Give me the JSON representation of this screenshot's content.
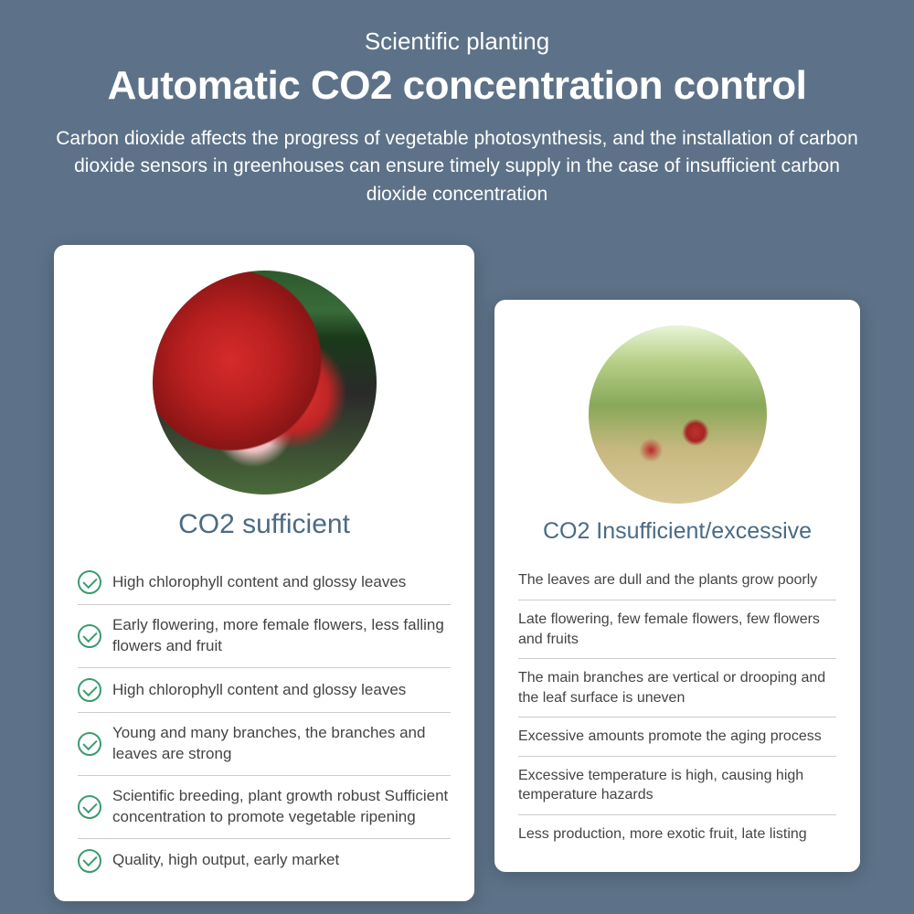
{
  "header": {
    "subtitle": "Scientific planting",
    "title": "Automatic CO2 concentration control",
    "description": "Carbon dioxide affects the progress of vegetable photosynthesis, and the installation of carbon dioxide sensors in greenhouses can ensure timely supply in the case of insufficient carbon dioxide concentration"
  },
  "colors": {
    "background": "#5d7288",
    "card_bg": "#ffffff",
    "title_color": "#4a6b85",
    "check_color": "#3b9b6f",
    "text_color": "#444444",
    "divider": "#cccccc"
  },
  "left_card": {
    "title": "CO2 sufficient",
    "image_type": "healthy-strawberries",
    "items": [
      "High chlorophyll content and glossy leaves",
      "Early flowering, more female flowers, less falling flowers and fruit",
      "High chlorophyll content and glossy leaves",
      "Young and many branches, the branches and leaves are strong",
      "Scientific breeding, plant growth robust Sufficient concentration to promote vegetable ripening",
      "Quality, high output, early market"
    ]
  },
  "right_card": {
    "title": "CO2 Insufficient/excessive",
    "image_type": "sparse-strawberry-plant",
    "items": [
      "The leaves are dull and the plants grow poorly",
      "Late flowering, few female flowers, few flowers and fruits",
      "The main branches are vertical or drooping and the leaf surface is uneven",
      "Excessive amounts promote the aging process",
      "Excessive temperature is high, causing high temperature hazards",
      "Less production, more exotic fruit, late listing"
    ]
  }
}
